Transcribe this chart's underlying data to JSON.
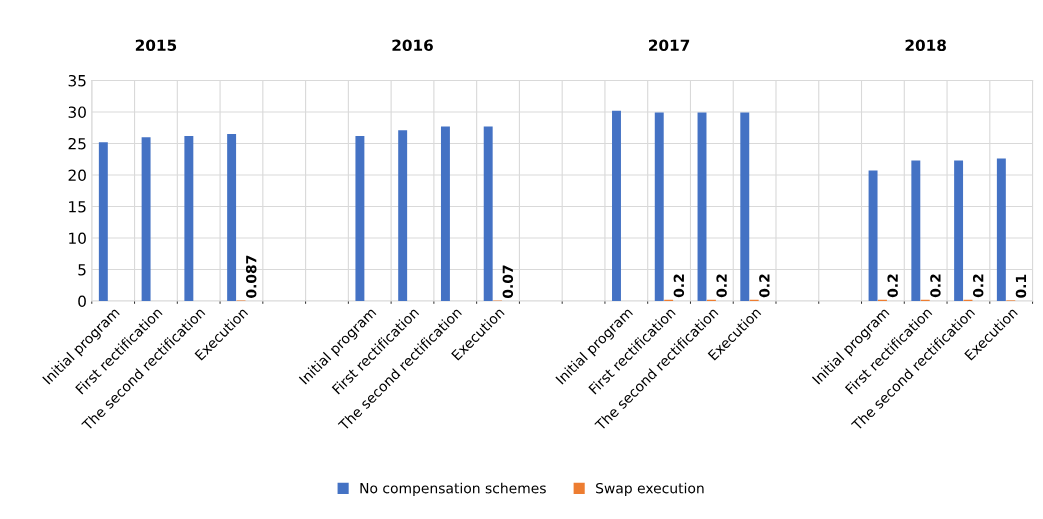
{
  "chart_data": {
    "type": "bar",
    "categories": [
      "Initial program",
      "First rectification",
      "The second rectification",
      "Execution",
      null,
      null,
      "Initial program",
      "First rectification",
      "The second rectification",
      "Execution",
      null,
      null,
      "Initial program",
      "First rectification",
      "The second rectification",
      "Execution",
      null,
      null,
      "Initial program",
      "First rectification",
      "The second rectification",
      "Execution"
    ],
    "series": [
      {
        "name": "No compensation schemes",
        "color": "#4472c4",
        "values": [
          25.2,
          26.0,
          26.2,
          26.5,
          null,
          null,
          26.2,
          27.1,
          27.7,
          27.7,
          null,
          null,
          30.2,
          29.9,
          29.9,
          29.9,
          null,
          null,
          20.7,
          22.3,
          22.3,
          22.6
        ]
      },
      {
        "name": "Swap execution",
        "color": "#ed7d31",
        "values": [
          null,
          null,
          null,
          0.087,
          null,
          null,
          null,
          null,
          null,
          0.07,
          null,
          null,
          null,
          0.2,
          0.2,
          0.2,
          null,
          null,
          0.2,
          0.2,
          0.2,
          0.1
        ],
        "value_labels": [
          null,
          null,
          null,
          "0.087",
          null,
          null,
          null,
          null,
          null,
          "0.07",
          null,
          null,
          null,
          "0.2",
          "0.2",
          "0.2",
          null,
          null,
          "0.2",
          "0.2",
          "0.2",
          "0.1"
        ]
      }
    ],
    "annotations": [
      "2015",
      "2016",
      "2017",
      "2018"
    ],
    "ylim": [
      0,
      35
    ],
    "yticks": [
      0,
      5,
      10,
      15,
      20,
      25,
      30,
      35
    ],
    "grid": true,
    "legend": "bottom"
  }
}
